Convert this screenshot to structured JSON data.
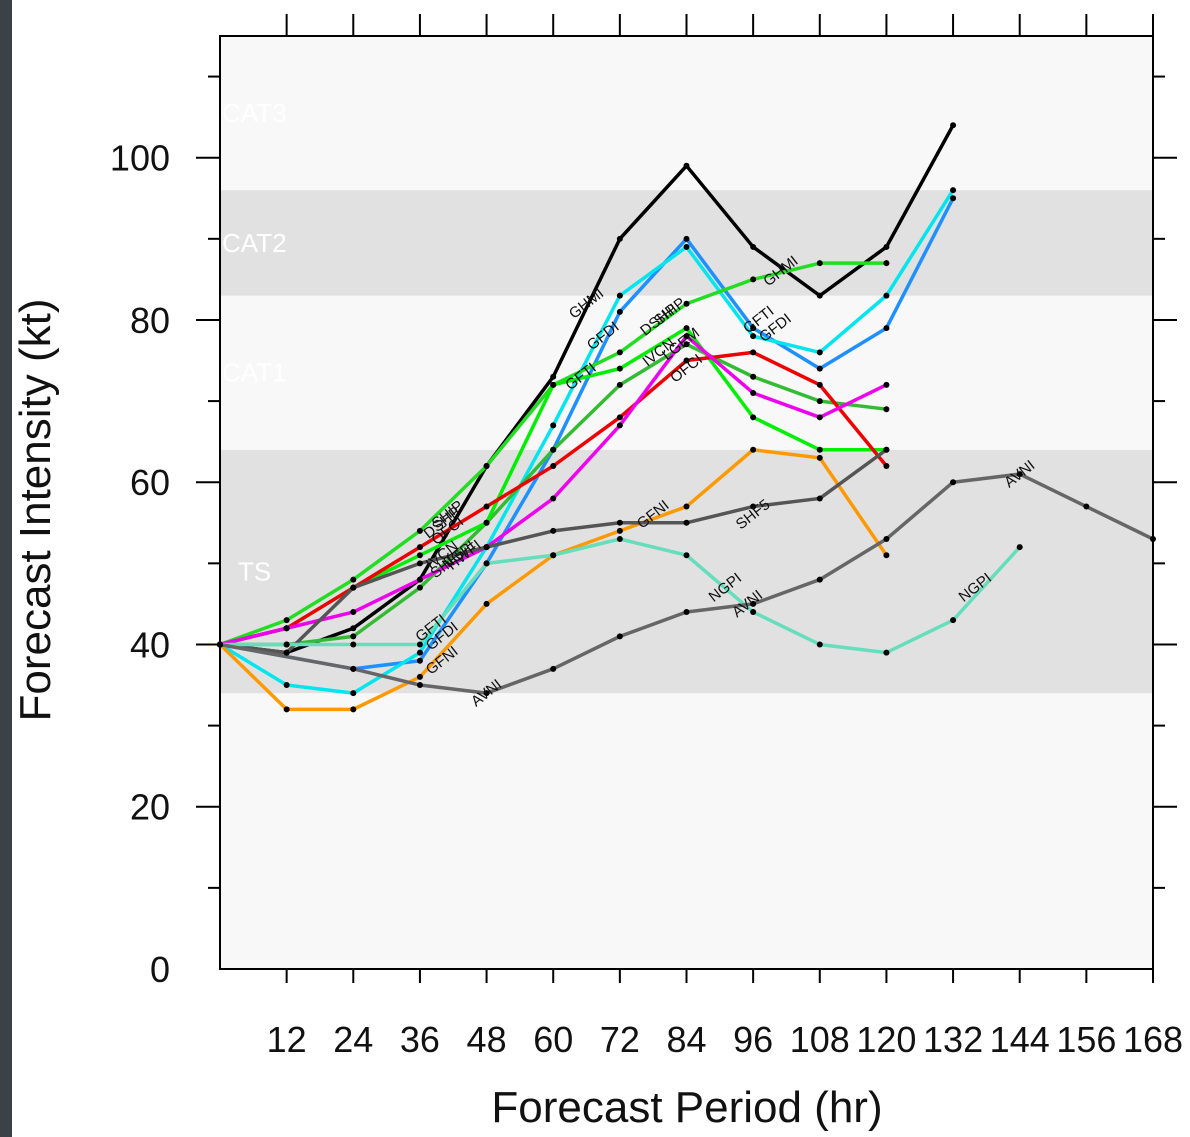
{
  "chart_data": {
    "type": "line",
    "xlabel": "Forecast Period (hr)",
    "ylabel": "Forecast Intensity (kt)",
    "xlim": [
      0,
      168
    ],
    "ylim": [
      0,
      115
    ],
    "x_ticks": [
      12,
      24,
      36,
      48,
      60,
      72,
      84,
      96,
      108,
      120,
      132,
      144,
      156,
      168
    ],
    "x_tick_labels": [
      "12",
      "24",
      "36",
      "48",
      "60",
      "72",
      "84",
      "96",
      "108",
      "120",
      "132",
      "144",
      "156",
      "168"
    ],
    "y_ticks": [
      0,
      20,
      40,
      60,
      80,
      100
    ],
    "y_tick_labels": [
      "0",
      "20",
      "40",
      "60",
      "80",
      "100"
    ],
    "grid": false,
    "legend": "none (series labelled directly on lines)",
    "bands": [
      {
        "label": "TS",
        "from": 34,
        "to": 64,
        "color": "#e1e1e1"
      },
      {
        "label": "CAT1",
        "from": 64,
        "to": 83,
        "color": "#f8f8f8"
      },
      {
        "label": "CAT2",
        "from": 83,
        "to": 96,
        "color": "#e1e1e1"
      },
      {
        "label": "CAT3",
        "from": 96,
        "to": 115,
        "color": "#f8f8f8"
      }
    ],
    "series": [
      {
        "name": "GHMI",
        "color": "#000000",
        "x": [
          0,
          12,
          24,
          36,
          48,
          60,
          72,
          84,
          96,
          108,
          120,
          132
        ],
        "values": [
          40,
          39,
          42,
          48,
          62,
          73,
          90,
          99,
          89,
          83,
          89,
          104
        ]
      },
      {
        "name": "GFDI",
        "color": "#1e90ff",
        "x": [
          0,
          24,
          36,
          48,
          60,
          72,
          84,
          96,
          108,
          120,
          132
        ],
        "values": [
          40,
          37,
          38,
          50,
          64,
          81,
          90,
          79,
          74,
          79,
          95
        ]
      },
      {
        "name": "GFTI",
        "color": "#00e5ee",
        "x": [
          0,
          12,
          24,
          36,
          48,
          60,
          72,
          84,
          96,
          108,
          120,
          132
        ],
        "values": [
          40,
          35,
          34,
          39,
          52,
          67,
          83,
          89,
          78,
          76,
          83,
          96
        ]
      },
      {
        "name": "DSHP",
        "color": "#22dd22",
        "x": [
          0,
          12,
          24,
          36,
          48,
          60,
          72,
          84,
          96,
          108,
          120
        ],
        "values": [
          40,
          43,
          48,
          54,
          62,
          72,
          76,
          82,
          85,
          87,
          87
        ]
      },
      {
        "name": "LGEM",
        "color": "#33bb33",
        "x": [
          0,
          12,
          24,
          36,
          48,
          60,
          72,
          84,
          96,
          108,
          120
        ],
        "values": [
          40,
          40,
          41,
          47,
          55,
          64,
          72,
          77,
          73,
          70,
          69
        ]
      },
      {
        "name": "IVCN",
        "color": "#00ee00",
        "x": [
          0,
          12,
          24,
          36,
          48,
          60,
          72,
          84,
          96,
          108,
          120
        ],
        "values": [
          40,
          42,
          47,
          51,
          55,
          72,
          74,
          79,
          68,
          64,
          64
        ]
      },
      {
        "name": "OFCI",
        "color": "#ee0000",
        "x": [
          0,
          12,
          24,
          36,
          48,
          60,
          72,
          84,
          96,
          108,
          120
        ],
        "values": [
          40,
          42,
          47,
          52,
          57,
          62,
          68,
          75,
          76,
          72,
          62
        ]
      },
      {
        "name": "HWFI",
        "color": "#ee00ee",
        "x": [
          0,
          12,
          24,
          36,
          48,
          60,
          72,
          84,
          96,
          108,
          120
        ],
        "values": [
          40,
          42,
          44,
          48,
          52,
          58,
          67,
          78,
          71,
          68,
          72
        ]
      },
      {
        "name": "GFNI",
        "color": "#ff9900",
        "x": [
          0,
          12,
          24,
          36,
          48,
          60,
          72,
          84,
          96,
          108,
          120
        ],
        "values": [
          40,
          32,
          32,
          36,
          45,
          51,
          54,
          57,
          64,
          63,
          51
        ]
      },
      {
        "name": "SHF5",
        "color": "#555555",
        "x": [
          0,
          12,
          24,
          36,
          48,
          60,
          72,
          84,
          96,
          108,
          120
        ],
        "values": [
          40,
          39,
          47,
          50,
          52,
          54,
          55,
          55,
          57,
          58,
          64
        ]
      },
      {
        "name": "NGPI",
        "color": "#66ddbb",
        "x": [
          0,
          12,
          24,
          36,
          48,
          60,
          72,
          84,
          96,
          108,
          120,
          132,
          144
        ],
        "values": [
          40,
          40,
          40,
          40,
          50,
          51,
          53,
          51,
          44,
          40,
          39,
          43,
          52
        ]
      },
      {
        "name": "AVNI",
        "color": "#666666",
        "x": [
          0,
          24,
          36,
          48,
          60,
          72,
          84,
          96,
          108,
          120,
          132,
          144,
          156,
          168
        ],
        "values": [
          40,
          37,
          35,
          34,
          37,
          41,
          44,
          45,
          48,
          53,
          60,
          61,
          57,
          53
        ]
      }
    ],
    "point_labels": [
      {
        "text": "GHMI",
        "series": "GHMI",
        "x": 66,
        "y": 82
      },
      {
        "text": "GHMI",
        "series": "GHMI",
        "x": 101,
        "y": 86
      },
      {
        "text": "GFDI",
        "series": "GFDI",
        "x": 40,
        "y": 41
      },
      {
        "text": "GFDI",
        "series": "GFDI",
        "x": 69,
        "y": 78
      },
      {
        "text": "GFDI",
        "series": "GFDI",
        "x": 100,
        "y": 79
      },
      {
        "text": "GFTI",
        "series": "GFTI",
        "x": 38,
        "y": 42
      },
      {
        "text": "GFTI",
        "series": "GFTI",
        "x": 65,
        "y": 73
      },
      {
        "text": "GFTI",
        "series": "GFTI",
        "x": 97,
        "y": 80
      },
      {
        "text": "DSHP",
        "series": "DSHP",
        "x": 40,
        "y": 55
      },
      {
        "text": "DSHP",
        "series": "DSHP",
        "x": 79,
        "y": 80
      },
      {
        "text": "SHIP",
        "series": "LGEM",
        "x": 41,
        "y": 56
      },
      {
        "text": "SHIP",
        "series": "LGEM",
        "x": 81,
        "y": 81
      },
      {
        "text": "LGEM",
        "series": "LGEM",
        "x": 83,
        "y": 77
      },
      {
        "text": "IVCN",
        "series": "IVCN",
        "x": 79,
        "y": 76
      },
      {
        "text": "IVCN",
        "series": "IVCN",
        "x": 40,
        "y": 51
      },
      {
        "text": "OFCI",
        "series": "OFCI",
        "x": 84,
        "y": 74
      },
      {
        "text": "OFCI",
        "series": "OFCI",
        "x": 41,
        "y": 54
      },
      {
        "text": "HWFI",
        "series": "HWFI",
        "x": 44,
        "y": 51
      },
      {
        "text": "GFNI",
        "series": "GFNI",
        "x": 40,
        "y": 38
      },
      {
        "text": "GFNI",
        "series": "GFNI",
        "x": 78,
        "y": 56
      },
      {
        "text": "SHF5",
        "series": "SHF5",
        "x": 96,
        "y": 56
      },
      {
        "text": "SHF5",
        "series": "SHF5",
        "x": 41,
        "y": 50
      },
      {
        "text": "NGPI",
        "series": "NGPI",
        "x": 43,
        "y": 51
      },
      {
        "text": "NGPI",
        "series": "NGPI",
        "x": 136,
        "y": 47
      },
      {
        "text": "NGPI",
        "series": "NGPI",
        "x": 91,
        "y": 47
      },
      {
        "text": "AVNI",
        "series": "AVNI",
        "x": 48,
        "y": 34
      },
      {
        "text": "AVNI",
        "series": "AVNI",
        "x": 95,
        "y": 45
      },
      {
        "text": "AVNI",
        "series": "AVNI",
        "x": 144,
        "y": 61
      }
    ]
  }
}
